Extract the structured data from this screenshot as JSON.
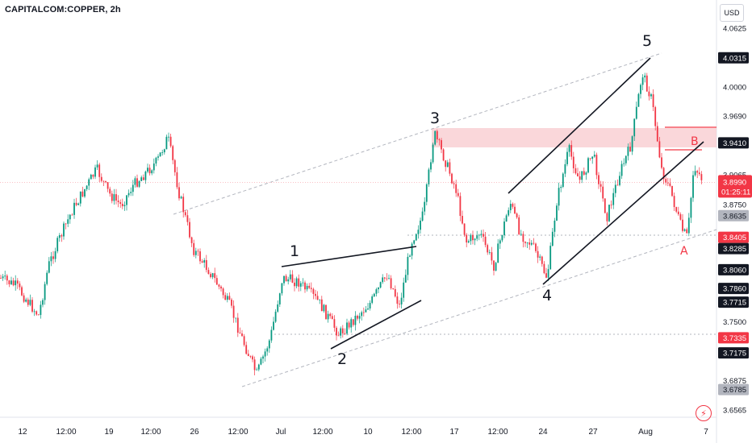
{
  "header": {
    "title": "CAPITALCOM:COPPER, 2h",
    "currency": "USD"
  },
  "chart_data": {
    "type": "candlestick",
    "ylim": [
      3.649,
      4.081
    ],
    "y_ticks": [
      "4.0625",
      "4.0000",
      "3.9690",
      "3.9065",
      "3.8750",
      "3.7500",
      "3.6875",
      "3.6565"
    ],
    "x_ticks": [
      "12",
      "12:00",
      "19",
      "12:00",
      "26",
      "12:00",
      "Jul",
      "12:00",
      "10",
      "12:00",
      "17",
      "12:00",
      "24",
      "27",
      "Aug",
      "7"
    ],
    "price_labels": [
      {
        "text": "4.0315",
        "value": 4.0315,
        "style": "dark"
      },
      {
        "text": "3.9410",
        "value": 3.941,
        "style": "dark"
      },
      {
        "text": "3.8635",
        "value": 3.8635,
        "style": "grey"
      },
      {
        "text": "3.8405",
        "value": 3.8405,
        "style": "red"
      },
      {
        "text": "3.8285",
        "value": 3.8285,
        "style": "dark"
      },
      {
        "text": "3.8060",
        "value": 3.806,
        "style": "dark"
      },
      {
        "text": "3.7860",
        "value": 3.786,
        "style": "dark"
      },
      {
        "text": "3.7715",
        "value": 3.7715,
        "style": "dark"
      },
      {
        "text": "3.7335",
        "value": 3.7335,
        "style": "red"
      },
      {
        "text": "3.7175",
        "value": 3.7175,
        "style": "dark"
      },
      {
        "text": "3.6785",
        "value": 3.6785,
        "style": "grey"
      }
    ],
    "current_price": {
      "text": "3.8990",
      "countdown": "01:25:11",
      "value": 3.899
    },
    "wave_labels": [
      "1",
      "2",
      "3",
      "4",
      "5"
    ],
    "corrective_labels": [
      "A",
      "B"
    ],
    "colors": {
      "up": "#089981",
      "down": "#f23645",
      "zone": "#f8c9ce",
      "accent": "#f23645"
    }
  },
  "footer": {
    "bolt_icon": "lightning-icon"
  }
}
